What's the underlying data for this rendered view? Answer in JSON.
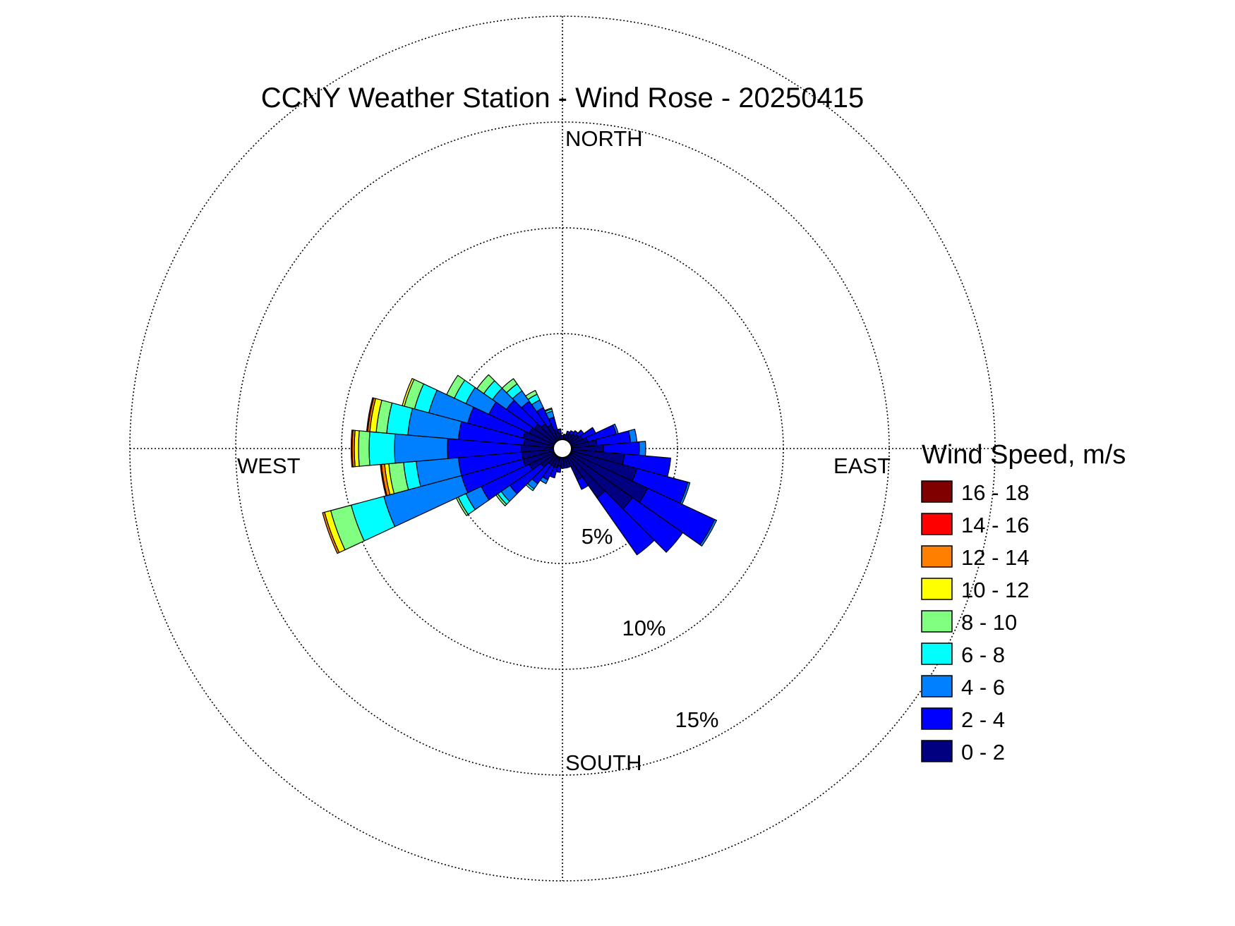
{
  "chart_data": {
    "type": "windrose",
    "title": "CCNY Weather Station - Wind Rose - 20250415",
    "directions": {
      "north": "NORTH",
      "east": "EAST",
      "south": "SOUTH",
      "west": "WEST"
    },
    "radial_unit": "percent frequency",
    "rings": [
      {
        "value": 5,
        "label": "5%"
      },
      {
        "value": 10,
        "label": "10%"
      },
      {
        "value": 15,
        "label": "15%"
      }
    ],
    "legend": {
      "title": "Wind Speed, m/s",
      "bins": [
        {
          "label": "16 - 18",
          "color": "#800000"
        },
        {
          "label": "14 - 16",
          "color": "#ff0000"
        },
        {
          "label": "12 - 14",
          "color": "#ff8000"
        },
        {
          "label": "10 - 12",
          "color": "#ffff00"
        },
        {
          "label": "8 - 10",
          "color": "#80ff80"
        },
        {
          "label": "6 - 8",
          "color": "#00ffff"
        },
        {
          "label": "4 - 6",
          "color": "#0080ff"
        },
        {
          "label": "2 - 4",
          "color": "#0000ff"
        },
        {
          "label": "0 - 2",
          "color": "#000080"
        }
      ]
    },
    "bin_order_inner_to_outer": [
      "0 - 2",
      "2 - 4",
      "4 - 6",
      "6 - 8",
      "8 - 10",
      "10 - 12",
      "12 - 14",
      "14 - 16",
      "16 - 18"
    ],
    "sector_width_deg": 10,
    "sectors": [
      {
        "direction_deg": 0,
        "values": [
          0.2
        ]
      },
      {
        "direction_deg": 10,
        "values": [
          0.25
        ]
      },
      {
        "direction_deg": 20,
        "values": [
          0.3,
          0.12
        ]
      },
      {
        "direction_deg": 30,
        "values": [
          0.35,
          0.15
        ]
      },
      {
        "direction_deg": 40,
        "values": [
          0.4,
          0.2
        ]
      },
      {
        "direction_deg": 50,
        "values": [
          0.5,
          0.3
        ]
      },
      {
        "direction_deg": 60,
        "values": [
          0.6,
          0.7
        ]
      },
      {
        "direction_deg": 70,
        "values": [
          0.8,
          1.4,
          0.1
        ]
      },
      {
        "direction_deg": 80,
        "values": [
          1.2,
          1.6,
          0.3
        ]
      },
      {
        "direction_deg": 90,
        "values": [
          1.5,
          1.7,
          0.3
        ]
      },
      {
        "direction_deg": 100,
        "values": [
          2.5,
          2.2
        ]
      },
      {
        "direction_deg": 110,
        "values": [
          3.2,
          2.5,
          0.1
        ]
      },
      {
        "direction_deg": 120,
        "values": [
          4.0,
          3.5,
          0.1
        ]
      },
      {
        "direction_deg": 130,
        "values": [
          3.6,
          2.9
        ]
      },
      {
        "direction_deg": 140,
        "values": [
          2.4,
          3.3
        ]
      },
      {
        "direction_deg": 150,
        "values": [
          1.2,
          0.5
        ]
      },
      {
        "direction_deg": 160,
        "values": [
          0.5
        ]
      },
      {
        "direction_deg": 170,
        "values": [
          0.5
        ]
      },
      {
        "direction_deg": 180,
        "values": [
          0.5
        ]
      },
      {
        "direction_deg": 190,
        "values": [
          0.4,
          0.3
        ]
      },
      {
        "direction_deg": 200,
        "values": [
          0.5,
          0.5
        ]
      },
      {
        "direction_deg": 210,
        "values": [
          0.5,
          0.7,
          0.2
        ]
      },
      {
        "direction_deg": 220,
        "values": [
          0.5,
          1.1,
          0.3,
          0.1
        ]
      },
      {
        "direction_deg": 230,
        "values": [
          0.8,
          1.8,
          0.5,
          0.2,
          0.1
        ]
      },
      {
        "direction_deg": 240,
        "values": [
          1.3,
          2.5,
          0.8,
          0.4,
          0.1
        ]
      },
      {
        "direction_deg": 250,
        "values": [
          1.5,
          3.0,
          3.8,
          1.6,
          1.0,
          0.3,
          0.1
        ]
      },
      {
        "direction_deg": 260,
        "values": [
          1.5,
          3.0,
          2.0,
          0.6,
          0.7,
          0.2,
          0.15,
          0.05
        ]
      },
      {
        "direction_deg": 270,
        "values": [
          1.5,
          3.5,
          2.5,
          1.2,
          0.5,
          0.2,
          0.1,
          0.05
        ]
      },
      {
        "direction_deg": 280,
        "values": [
          1.4,
          3.1,
          2.4,
          1.0,
          0.5,
          0.3,
          0.1,
          0.05
        ]
      },
      {
        "direction_deg": 290,
        "values": [
          1.5,
          2.7,
          1.9,
          0.7,
          0.5,
          0.1
        ]
      },
      {
        "direction_deg": 300,
        "values": [
          1.3,
          2.1,
          1.2,
          0.6,
          0.4
        ]
      },
      {
        "direction_deg": 310,
        "values": [
          1.2,
          1.6,
          0.8,
          0.5,
          0.4
        ]
      },
      {
        "direction_deg": 320,
        "values": [
          1.0,
          1.3,
          0.6,
          0.4,
          0.3
        ]
      },
      {
        "direction_deg": 330,
        "values": [
          0.8,
          0.9,
          0.4,
          0.3,
          0.2
        ]
      },
      {
        "direction_deg": 340,
        "values": [
          0.5,
          0.6,
          0.3,
          0.1,
          0.05
        ]
      },
      {
        "direction_deg": 350,
        "values": [
          0.3,
          0.2
        ]
      }
    ]
  }
}
